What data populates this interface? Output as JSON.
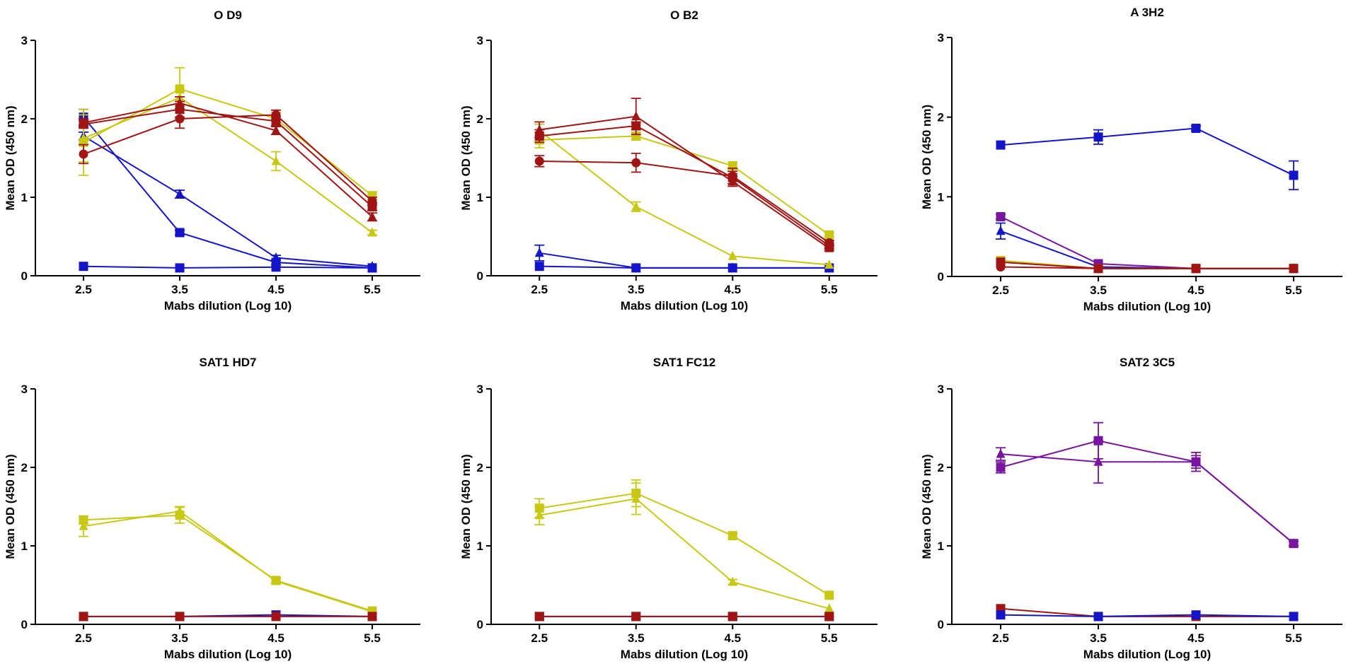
{
  "colors": {
    "blue": "#1414c8",
    "yellow": "#c8c814",
    "red": "#a01414",
    "purple": "#7814a0",
    "axis": "#000000"
  },
  "chart_data": [
    {
      "type": "line",
      "title": "O D9",
      "xlabel": "Mabs dilution (Log 10)",
      "ylabel": "Mean OD (450 nm)",
      "x": [
        2.5,
        3.5,
        4.5,
        5.5
      ],
      "xlim": [
        2.0,
        6.0
      ],
      "ylim": [
        0,
        3
      ],
      "yticks": [
        0,
        1,
        2,
        3
      ],
      "series": [
        {
          "name": "blue-square-1",
          "color": "blue",
          "marker": "square",
          "values": [
            2.02,
            0.55,
            0.17,
            0.1
          ],
          "err": [
            0.1,
            0.03,
            0.03,
            0.02
          ]
        },
        {
          "name": "blue-triangle",
          "color": "blue",
          "marker": "triangle",
          "values": [
            1.78,
            1.04,
            0.23,
            0.12
          ],
          "err": [
            0.05,
            0.05,
            0.03,
            0.02
          ]
        },
        {
          "name": "blue-square-2",
          "color": "blue",
          "marker": "square",
          "values": [
            0.12,
            0.1,
            0.11,
            0.1
          ],
          "err": [
            0.02,
            0.02,
            0.02,
            0.02
          ]
        },
        {
          "name": "yellow-square",
          "color": "yellow",
          "marker": "square",
          "values": [
            1.7,
            2.38,
            2.0,
            1.02
          ],
          "err": [
            0.42,
            0.27,
            0.08,
            0.05
          ]
        },
        {
          "name": "yellow-triangle",
          "color": "yellow",
          "marker": "triangle",
          "values": [
            1.75,
            2.27,
            1.46,
            0.55
          ],
          "err": [
            0.3,
            0.08,
            0.12,
            0.03
          ]
        },
        {
          "name": "red-circle",
          "color": "red",
          "marker": "circle",
          "values": [
            1.55,
            2.0,
            2.05,
            0.95
          ],
          "err": [
            0.12,
            0.12,
            0.06,
            0.05
          ]
        },
        {
          "name": "red-square",
          "color": "red",
          "marker": "square",
          "values": [
            1.93,
            2.12,
            1.97,
            0.88
          ],
          "err": [
            0.05,
            0.1,
            0.06,
            0.05
          ]
        },
        {
          "name": "red-triangle",
          "color": "red",
          "marker": "triangle",
          "values": [
            1.95,
            2.2,
            1.85,
            0.75
          ],
          "err": [
            0.05,
            0.08,
            0.05,
            0.05
          ]
        }
      ]
    },
    {
      "type": "line",
      "title": "O B2",
      "xlabel": "Mabs dilution (Log 10)",
      "ylabel": "Mean OD (450 nm)",
      "x": [
        2.5,
        3.5,
        4.5,
        5.5
      ],
      "xlim": [
        2.0,
        6.0
      ],
      "ylim": [
        0,
        3
      ],
      "yticks": [
        0,
        1,
        2,
        3
      ],
      "series": [
        {
          "name": "blue-triangle",
          "color": "blue",
          "marker": "triangle",
          "values": [
            0.29,
            0.1,
            0.1,
            0.1
          ],
          "err": [
            0.1,
            0.02,
            0.02,
            0.02
          ]
        },
        {
          "name": "blue-square",
          "color": "blue",
          "marker": "square",
          "values": [
            0.12,
            0.1,
            0.1,
            0.1
          ],
          "err": [
            0.02,
            0.02,
            0.02,
            0.02
          ]
        },
        {
          "name": "yellow-square",
          "color": "yellow",
          "marker": "square",
          "values": [
            1.73,
            1.78,
            1.4,
            0.52
          ],
          "err": [
            0.1,
            0.05,
            0.05,
            0.03
          ]
        },
        {
          "name": "yellow-triangle",
          "color": "yellow",
          "marker": "triangle",
          "values": [
            1.85,
            0.88,
            0.25,
            0.14
          ],
          "err": [
            0.08,
            0.06,
            0.02,
            0.02
          ]
        },
        {
          "name": "red-circle",
          "color": "red",
          "marker": "circle",
          "values": [
            1.46,
            1.44,
            1.27,
            0.42
          ],
          "err": [
            0.07,
            0.12,
            0.1,
            0.03
          ]
        },
        {
          "name": "red-square",
          "color": "red",
          "marker": "square",
          "values": [
            1.78,
            1.91,
            1.25,
            0.38
          ],
          "err": [
            0.08,
            0.05,
            0.08,
            0.03
          ]
        },
        {
          "name": "red-triangle",
          "color": "red",
          "marker": "triangle",
          "values": [
            1.86,
            2.03,
            1.2,
            0.35
          ],
          "err": [
            0.1,
            0.23,
            0.06,
            0.03
          ]
        }
      ]
    },
    {
      "type": "line",
      "title": "A 3H2",
      "xlabel": "Mabs dilution (Log 10)",
      "ylabel": "Mean OD (450 nm)",
      "x": [
        2.5,
        3.5,
        4.5,
        5.5
      ],
      "xlim": [
        2.0,
        6.0
      ],
      "ylim": [
        0,
        3
      ],
      "yticks": [
        0,
        1,
        2,
        3
      ],
      "series": [
        {
          "name": "blue-square",
          "color": "blue",
          "marker": "square",
          "values": [
            1.65,
            1.75,
            1.86,
            1.27
          ],
          "err": [
            0.02,
            0.09,
            0.03,
            0.18
          ]
        },
        {
          "name": "blue-triangle",
          "color": "blue",
          "marker": "triangle",
          "values": [
            0.57,
            0.12,
            0.1,
            0.1
          ],
          "err": [
            0.1,
            0.02,
            0.02,
            0.02
          ]
        },
        {
          "name": "purple-square",
          "color": "purple",
          "marker": "square",
          "values": [
            0.75,
            0.16,
            0.1,
            0.1
          ],
          "err": [
            0.03,
            0.02,
            0.02,
            0.02
          ]
        },
        {
          "name": "yellow-square",
          "color": "yellow",
          "marker": "square",
          "values": [
            0.2,
            0.1,
            0.1,
            0.1
          ],
          "err": [
            0.02,
            0.02,
            0.02,
            0.02
          ]
        },
        {
          "name": "red-square",
          "color": "red",
          "marker": "square",
          "values": [
            0.18,
            0.1,
            0.1,
            0.1
          ],
          "err": [
            0.02,
            0.02,
            0.02,
            0.02
          ]
        },
        {
          "name": "red-circle",
          "color": "red",
          "marker": "circle",
          "values": [
            0.12,
            0.1,
            0.1,
            0.1
          ],
          "err": [
            0.02,
            0.02,
            0.02,
            0.02
          ]
        }
      ]
    },
    {
      "type": "line",
      "title": "SAT1 HD7",
      "xlabel": "Mabs dilution (Log 10)",
      "ylabel": "Mean OD (450 nm)",
      "x": [
        2.5,
        3.5,
        4.5,
        5.5
      ],
      "xlim": [
        2.0,
        6.0
      ],
      "ylim": [
        0,
        3
      ],
      "yticks": [
        0,
        1,
        2,
        3
      ],
      "series": [
        {
          "name": "yellow-square",
          "color": "yellow",
          "marker": "square",
          "values": [
            1.33,
            1.39,
            0.56,
            0.17
          ],
          "err": [
            0.05,
            0.1,
            0.03,
            0.02
          ]
        },
        {
          "name": "yellow-triangle",
          "color": "yellow",
          "marker": "triangle",
          "values": [
            1.25,
            1.44,
            0.55,
            0.16
          ],
          "err": [
            0.13,
            0.06,
            0.03,
            0.02
          ]
        },
        {
          "name": "blue-square",
          "color": "blue",
          "marker": "square",
          "values": [
            0.1,
            0.1,
            0.12,
            0.1
          ],
          "err": [
            0.02,
            0.02,
            0.02,
            0.02
          ]
        },
        {
          "name": "red-square",
          "color": "red",
          "marker": "square",
          "values": [
            0.1,
            0.1,
            0.1,
            0.1
          ],
          "err": [
            0.02,
            0.02,
            0.02,
            0.02
          ]
        }
      ]
    },
    {
      "type": "line",
      "title": "SAT1 FC12",
      "xlabel": "Mabs dilution (Log 10)",
      "ylabel": "Mean OD (450 nm)",
      "x": [
        2.5,
        3.5,
        4.5,
        5.5
      ],
      "xlim": [
        2.0,
        6.0
      ],
      "ylim": [
        0,
        3
      ],
      "yticks": [
        0,
        1,
        2,
        3
      ],
      "series": [
        {
          "name": "yellow-square",
          "color": "yellow",
          "marker": "square",
          "values": [
            1.48,
            1.67,
            1.13,
            0.37
          ],
          "err": [
            0.12,
            0.17,
            0.03,
            0.02
          ]
        },
        {
          "name": "yellow-triangle",
          "color": "yellow",
          "marker": "triangle",
          "values": [
            1.39,
            1.6,
            0.54,
            0.2
          ],
          "err": [
            0.12,
            0.2,
            0.03,
            0.02
          ]
        },
        {
          "name": "blue-square",
          "color": "blue",
          "marker": "square",
          "values": [
            0.1,
            0.1,
            0.1,
            0.1
          ],
          "err": [
            0.02,
            0.02,
            0.02,
            0.02
          ]
        },
        {
          "name": "red-square",
          "color": "red",
          "marker": "square",
          "values": [
            0.1,
            0.1,
            0.1,
            0.1
          ],
          "err": [
            0.02,
            0.02,
            0.02,
            0.02
          ]
        }
      ]
    },
    {
      "type": "line",
      "title": "SAT2 3C5",
      "xlabel": "Mabs dilution (Log 10)",
      "ylabel": "Mean OD (450 nm)",
      "x": [
        2.5,
        3.5,
        4.5,
        5.5
      ],
      "xlim": [
        2.0,
        6.0
      ],
      "ylim": [
        0,
        3
      ],
      "yticks": [
        0,
        1,
        2,
        3
      ],
      "series": [
        {
          "name": "purple-square",
          "color": "purple",
          "marker": "square",
          "values": [
            2.0,
            2.34,
            2.07,
            1.03
          ],
          "err": [
            0.07,
            0.23,
            0.12,
            0.03
          ]
        },
        {
          "name": "purple-triangle",
          "color": "purple",
          "marker": "triangle",
          "values": [
            2.17,
            2.07,
            2.07,
            1.03
          ],
          "err": [
            0.08,
            0.27,
            0.08,
            0.03
          ]
        },
        {
          "name": "red-square",
          "color": "red",
          "marker": "square",
          "values": [
            0.2,
            0.1,
            0.1,
            0.1
          ],
          "err": [
            0.02,
            0.02,
            0.02,
            0.02
          ]
        },
        {
          "name": "blue-square",
          "color": "blue",
          "marker": "square",
          "values": [
            0.12,
            0.1,
            0.12,
            0.1
          ],
          "err": [
            0.02,
            0.02,
            0.02,
            0.02
          ]
        }
      ]
    }
  ]
}
